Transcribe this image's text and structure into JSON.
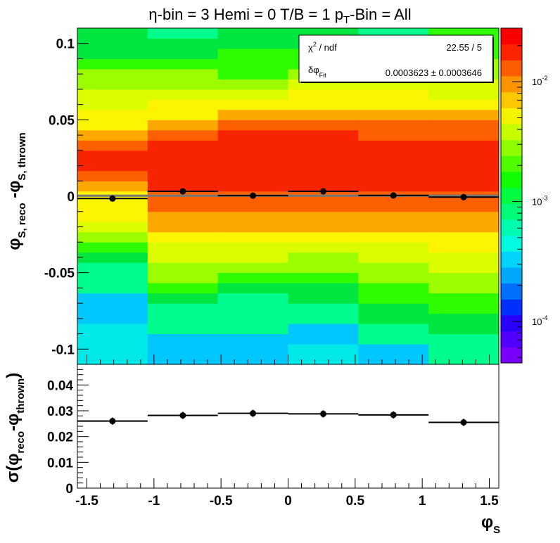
{
  "chart_data": [
    {
      "type": "heatmap",
      "title": {
        "main": "η-bin = 3 Hemi = 0 T/B = 1 p",
        "sub": "T",
        "tail": "-Bin = All"
      },
      "xlabel": {
        "main": "φ",
        "sub": "S"
      },
      "ylabel": {
        "pre": "φ",
        "sub1": "S, reco",
        "mid": " -φ",
        "sub2": "S, thrown"
      },
      "xlim": [
        -1.5708,
        1.5708
      ],
      "ylim": [
        -0.11,
        0.11
      ],
      "x_edges": [
        -1.5708,
        -1.0472,
        -0.5236,
        0.0,
        0.5236,
        1.0472,
        1.5708
      ],
      "y_ticks": [
        -0.1,
        -0.05,
        0,
        0.05,
        0.1
      ],
      "y_tick_labels": [
        "-0.1",
        "-0.05",
        "0",
        "0.05",
        "0.1"
      ],
      "colorbar": {
        "scale": "log",
        "range": [
          4.5e-05,
          0.028
        ],
        "ticks": [
          0.0001,
          0.001,
          0.01
        ],
        "tick_base": "10",
        "tick_exponents": [
          "-4",
          "-3",
          "-2"
        ]
      },
      "cells": [
        [
          0,
          0,
          0,
          0,
          1,
          1,
          1,
          2,
          2,
          2,
          3,
          4,
          5,
          6,
          7,
          7,
          7,
          8,
          9,
          10,
          10,
          9,
          8,
          7,
          7,
          6,
          6,
          5,
          5,
          4,
          3,
          3,
          3
        ],
        [
          1,
          1,
          1,
          2,
          2,
          2,
          3,
          4,
          5,
          5,
          6,
          6,
          7,
          8,
          8,
          9,
          9,
          10,
          10,
          10,
          10,
          10,
          9,
          8,
          7,
          7,
          6,
          5,
          5,
          4,
          3,
          3,
          2
        ],
        [
          1,
          1,
          1,
          2,
          2,
          2,
          2,
          3,
          4,
          5,
          6,
          6,
          7,
          8,
          8,
          9,
          9,
          10,
          10,
          10,
          10,
          10,
          10,
          9,
          8,
          7,
          6,
          5,
          4,
          4,
          4,
          3,
          3
        ],
        [
          0,
          0,
          1,
          1,
          2,
          2,
          3,
          3,
          4,
          5,
          5,
          6,
          7,
          8,
          8,
          9,
          9,
          10,
          10,
          10,
          10,
          10,
          10,
          9,
          8,
          7,
          7,
          6,
          5,
          4,
          4,
          3,
          3
        ],
        [
          1,
          1,
          2,
          2,
          3,
          3,
          4,
          4,
          5,
          5,
          6,
          6,
          7,
          8,
          8,
          9,
          9,
          10,
          10,
          10,
          10,
          10,
          9,
          9,
          8,
          7,
          7,
          6,
          5,
          4,
          3,
          3,
          2
        ],
        [
          2,
          2,
          2,
          3,
          3,
          4,
          4,
          5,
          5,
          6,
          6,
          7,
          7,
          8,
          8,
          9,
          9,
          10,
          10,
          10,
          10,
          10,
          9,
          9,
          8,
          7,
          6,
          6,
          5,
          5,
          4,
          4,
          4
        ]
      ],
      "points": [
        {
          "x": -1.309,
          "y": -0.0015
        },
        {
          "x": -0.785,
          "y": 0.0032
        },
        {
          "x": -0.262,
          "y": 0.0004
        },
        {
          "x": 0.262,
          "y": 0.0032
        },
        {
          "x": 0.785,
          "y": 0.0005
        },
        {
          "x": 1.309,
          "y": -0.0006
        }
      ],
      "fit_line_y": 0.0003623,
      "stats": {
        "row1_label": "χ",
        "row1_sup": "2",
        "row1_tail": " / ndf",
        "row1_value": "22.55 / 5",
        "row2_label": "δφ",
        "row2_sub": "Fit",
        "row2_value": "0.0003623 ± 0.0003646"
      }
    },
    {
      "type": "scatter",
      "ylabel": {
        "pre": "σ(φ",
        "sub1": "reco",
        "mid": "-φ",
        "sub2": "thrown",
        "post": ")"
      },
      "xlim": [
        -1.5708,
        1.5708
      ],
      "ylim": [
        0,
        0.048
      ],
      "x_ticks": [
        -1.5,
        -1,
        -0.5,
        0,
        0.5,
        1,
        1.5
      ],
      "x_tick_labels": [
        "-1.5",
        "-1",
        "-0.5",
        "0",
        "0.5",
        "1",
        "1.5"
      ],
      "y_ticks": [
        0,
        0.01,
        0.02,
        0.03,
        0.04
      ],
      "y_tick_labels": [
        "0",
        "0.01",
        "0.02",
        "0.03",
        "0.04"
      ],
      "points": [
        {
          "x": -1.309,
          "y": 0.026
        },
        {
          "x": -0.785,
          "y": 0.0282
        },
        {
          "x": -0.262,
          "y": 0.029
        },
        {
          "x": 0.262,
          "y": 0.0288
        },
        {
          "x": 0.785,
          "y": 0.0284
        },
        {
          "x": 1.309,
          "y": 0.0255
        }
      ],
      "bin_edges": [
        -1.5708,
        -1.0472,
        -0.5236,
        0.0,
        0.5236,
        1.0472,
        1.5708
      ]
    }
  ]
}
